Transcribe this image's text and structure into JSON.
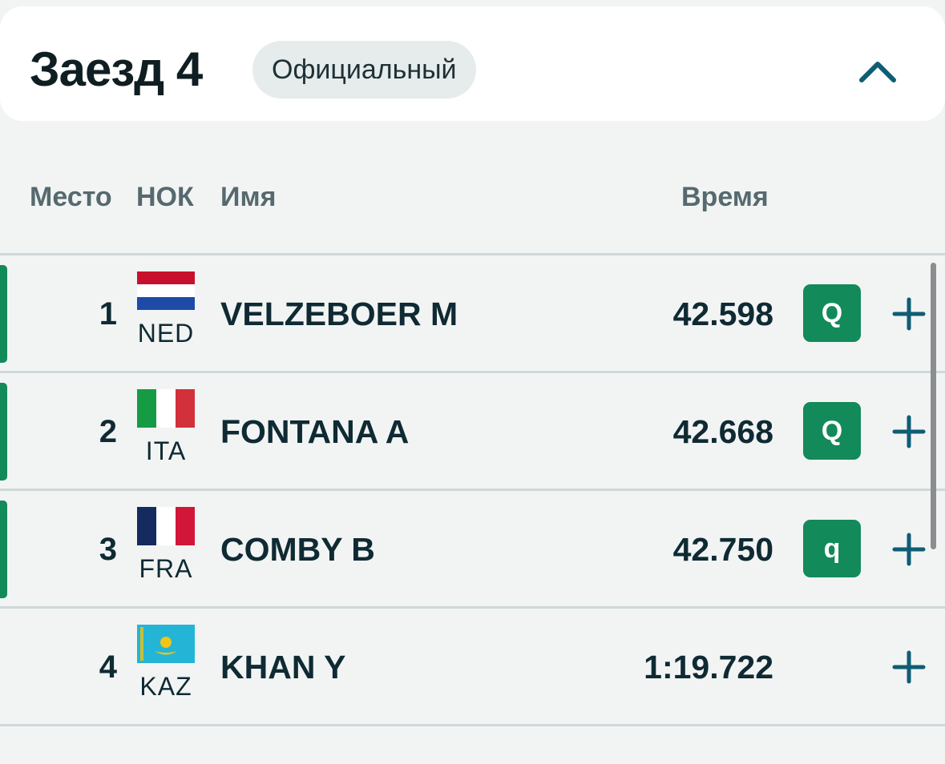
{
  "header": {
    "title": "Заезд 4",
    "status": "Официальный",
    "collapse_icon": "chevron-up-icon"
  },
  "columns": {
    "place": "Место",
    "noc": "НОК",
    "name": "Имя",
    "time": "Время"
  },
  "rows": [
    {
      "rank": "1",
      "noc": "NED",
      "flag": "netherlands-flag-icon",
      "name": "VELZEBOER M",
      "time": "42.598",
      "qual": "Q"
    },
    {
      "rank": "2",
      "noc": "ITA",
      "flag": "italy-flag-icon",
      "name": "FONTANA A",
      "time": "42.668",
      "qual": "Q"
    },
    {
      "rank": "3",
      "noc": "FRA",
      "flag": "france-flag-icon",
      "name": "COMBY B",
      "time": "42.750",
      "qual": "q"
    },
    {
      "rank": "4",
      "noc": "KAZ",
      "flag": "kazakhstan-flag-icon",
      "name": "KHAN Y",
      "time": "1:19.722",
      "qual": ""
    }
  ],
  "icons": {
    "expand": "plus-icon"
  },
  "colors": {
    "accent_green": "#138a5a",
    "text_dark": "#0f2a33",
    "icon_teal": "#0f5d74",
    "background": "#f2f4f4"
  }
}
